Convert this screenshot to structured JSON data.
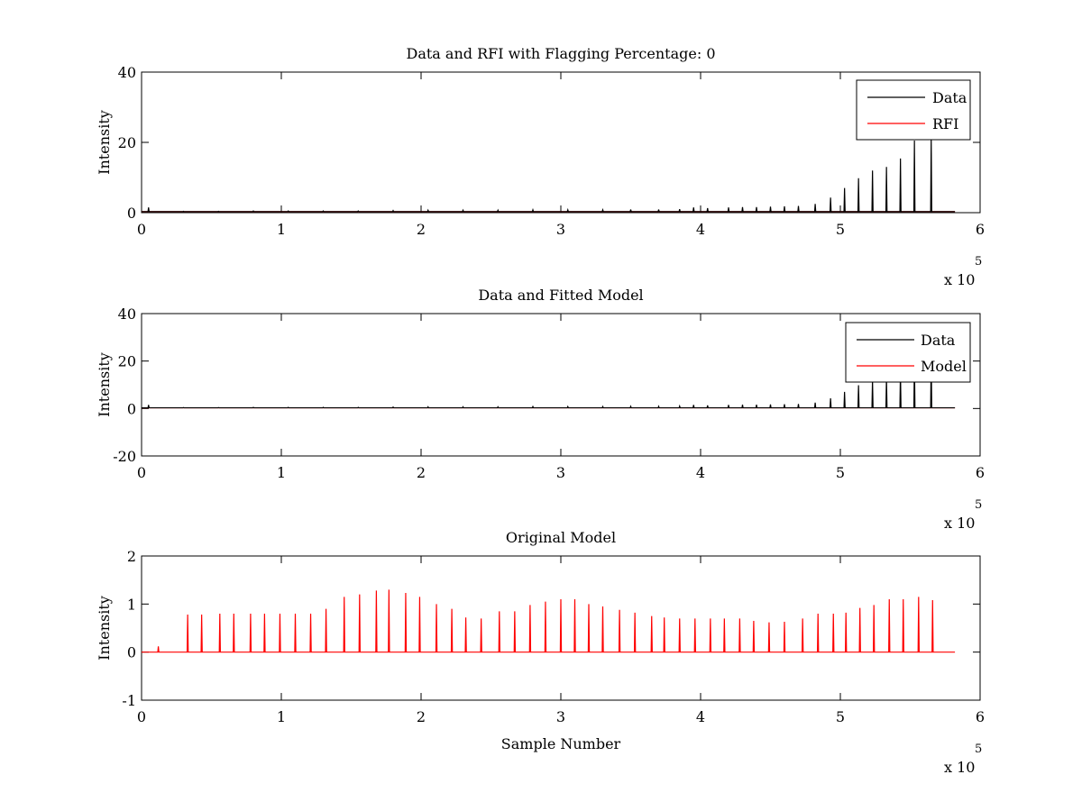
{
  "chart_data": [
    {
      "type": "line",
      "title": "Data and RFI with Flagging Percentage: 0",
      "xlabel": "",
      "ylabel": "Intensity",
      "xlim": [
        0,
        6
      ],
      "ylim": [
        0,
        40
      ],
      "x_multiplier_label": "x 10",
      "x_multiplier_exponent": "5",
      "xticks": [
        "0",
        "1",
        "2",
        "3",
        "4",
        "5",
        "6"
      ],
      "yticks": [
        "0",
        "20",
        "40"
      ],
      "legend_position": "top-right",
      "baseline": 0.3,
      "series": [
        {
          "name": "Data",
          "color": "#000000",
          "peaks": [
            [
              0.05,
              1.5
            ],
            [
              0.3,
              0.4
            ],
            [
              0.55,
              0.4
            ],
            [
              0.8,
              0.5
            ],
            [
              1.05,
              0.5
            ],
            [
              1.3,
              0.5
            ],
            [
              1.55,
              0.5
            ],
            [
              1.8,
              0.6
            ],
            [
              2.05,
              0.7
            ],
            [
              2.3,
              0.7
            ],
            [
              2.55,
              0.7
            ],
            [
              2.8,
              0.8
            ],
            [
              3.05,
              0.8
            ],
            [
              3.3,
              0.8
            ],
            [
              3.5,
              0.9
            ],
            [
              3.7,
              0.9
            ],
            [
              3.85,
              1.0
            ],
            [
              3.95,
              1.5
            ],
            [
              4.05,
              1.3
            ],
            [
              4.2,
              1.5
            ],
            [
              4.3,
              1.6
            ],
            [
              4.4,
              1.6
            ],
            [
              4.5,
              1.7
            ],
            [
              4.6,
              1.8
            ],
            [
              4.7,
              1.9
            ],
            [
              4.82,
              2.5
            ],
            [
              4.93,
              4.3
            ],
            [
              5.03,
              7.0
            ],
            [
              5.13,
              9.8
            ],
            [
              5.23,
              12.0
            ],
            [
              5.33,
              13.0
            ],
            [
              5.43,
              15.4
            ],
            [
              5.53,
              20.5
            ],
            [
              5.65,
              21.5
            ]
          ]
        },
        {
          "name": "RFI",
          "color": "#ff0000",
          "peaks": []
        }
      ]
    },
    {
      "type": "line",
      "title": "Data and Fitted Model",
      "xlabel": "",
      "ylabel": "Intensity",
      "xlim": [
        0,
        6
      ],
      "ylim": [
        -20,
        40
      ],
      "x_multiplier_label": "x 10",
      "x_multiplier_exponent": "5",
      "xticks": [
        "0",
        "1",
        "2",
        "3",
        "4",
        "5",
        "6"
      ],
      "yticks": [
        "-20",
        "0",
        "20",
        "40"
      ],
      "legend_position": "top-right",
      "baseline": 0.3,
      "series": [
        {
          "name": "Data",
          "color": "#000000",
          "peaks": [
            [
              0.05,
              1.5
            ],
            [
              0.3,
              0.4
            ],
            [
              0.55,
              0.4
            ],
            [
              0.8,
              0.5
            ],
            [
              1.05,
              0.5
            ],
            [
              1.3,
              0.5
            ],
            [
              1.55,
              0.5
            ],
            [
              1.8,
              0.6
            ],
            [
              2.05,
              0.7
            ],
            [
              2.3,
              0.7
            ],
            [
              2.55,
              0.7
            ],
            [
              2.8,
              0.8
            ],
            [
              3.05,
              0.8
            ],
            [
              3.3,
              0.8
            ],
            [
              3.5,
              0.9
            ],
            [
              3.7,
              0.9
            ],
            [
              3.85,
              1.0
            ],
            [
              3.95,
              1.5
            ],
            [
              4.05,
              1.3
            ],
            [
              4.2,
              1.5
            ],
            [
              4.3,
              1.6
            ],
            [
              4.4,
              1.6
            ],
            [
              4.5,
              1.7
            ],
            [
              4.6,
              1.8
            ],
            [
              4.7,
              1.9
            ],
            [
              4.82,
              2.5
            ],
            [
              4.93,
              4.3
            ],
            [
              5.03,
              7.0
            ],
            [
              5.13,
              9.8
            ],
            [
              5.23,
              12.0
            ],
            [
              5.33,
              13.0
            ],
            [
              5.43,
              15.4
            ],
            [
              5.53,
              20.5
            ],
            [
              5.65,
              21.5
            ]
          ]
        },
        {
          "name": "Model",
          "color": "#ff0000",
          "peaks": []
        }
      ]
    },
    {
      "type": "line",
      "title": "Original Model",
      "xlabel": "Sample Number",
      "ylabel": "Intensity",
      "xlim": [
        0,
        6
      ],
      "ylim": [
        -1,
        2
      ],
      "x_multiplier_label": "x 10",
      "x_multiplier_exponent": "5",
      "xticks": [
        "0",
        "1",
        "2",
        "3",
        "4",
        "5",
        "6"
      ],
      "yticks": [
        "-1",
        "0",
        "1",
        "2"
      ],
      "baseline": 0,
      "series": [
        {
          "name": "",
          "color": "#ff0000",
          "peaks": [
            [
              0.12,
              0.12
            ],
            [
              0.33,
              0.78
            ],
            [
              0.43,
              0.78
            ],
            [
              0.56,
              0.8
            ],
            [
              0.66,
              0.8
            ],
            [
              0.78,
              0.8
            ],
            [
              0.88,
              0.8
            ],
            [
              0.99,
              0.8
            ],
            [
              1.1,
              0.8
            ],
            [
              1.21,
              0.8
            ],
            [
              1.32,
              0.9
            ],
            [
              1.45,
              1.15
            ],
            [
              1.56,
              1.2
            ],
            [
              1.68,
              1.28
            ],
            [
              1.77,
              1.3
            ],
            [
              1.89,
              1.23
            ],
            [
              1.99,
              1.15
            ],
            [
              2.11,
              1.0
            ],
            [
              2.22,
              0.9
            ],
            [
              2.32,
              0.72
            ],
            [
              2.43,
              0.7
            ],
            [
              2.56,
              0.85
            ],
            [
              2.67,
              0.85
            ],
            [
              2.78,
              0.98
            ],
            [
              2.89,
              1.05
            ],
            [
              3.0,
              1.1
            ],
            [
              3.1,
              1.1
            ],
            [
              3.2,
              1.0
            ],
            [
              3.3,
              0.95
            ],
            [
              3.42,
              0.88
            ],
            [
              3.53,
              0.82
            ],
            [
              3.65,
              0.75
            ],
            [
              3.74,
              0.72
            ],
            [
              3.85,
              0.7
            ],
            [
              3.96,
              0.7
            ],
            [
              4.07,
              0.7
            ],
            [
              4.17,
              0.7
            ],
            [
              4.28,
              0.7
            ],
            [
              4.38,
              0.65
            ],
            [
              4.49,
              0.62
            ],
            [
              4.6,
              0.63
            ],
            [
              4.73,
              0.7
            ],
            [
              4.84,
              0.8
            ],
            [
              4.95,
              0.8
            ],
            [
              5.04,
              0.82
            ],
            [
              5.14,
              0.92
            ],
            [
              5.24,
              0.98
            ],
            [
              5.35,
              1.1
            ],
            [
              5.45,
              1.1
            ],
            [
              5.56,
              1.15
            ],
            [
              5.66,
              1.08
            ]
          ]
        }
      ]
    }
  ]
}
